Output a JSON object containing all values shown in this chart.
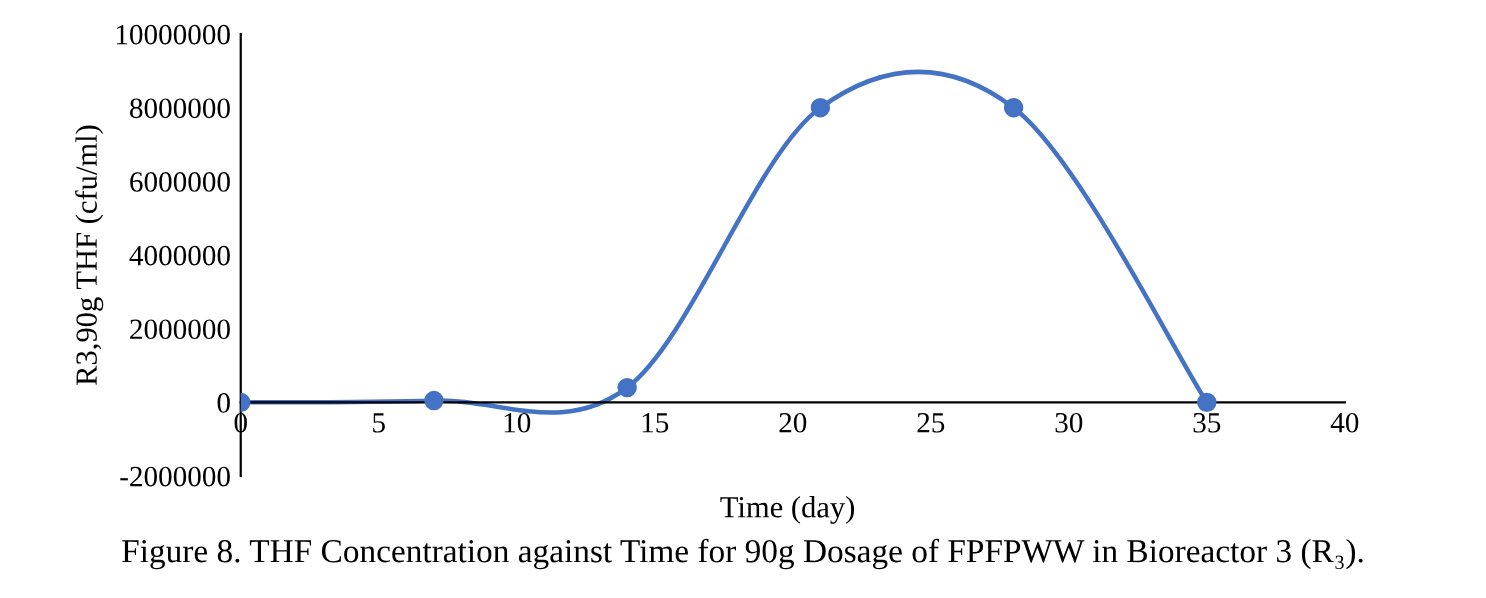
{
  "chart_data": {
    "type": "line",
    "xlabel": "Time (day)",
    "ylabel": "R3,90g THF (cfu/ml)",
    "annotations": [
      "Figure 8. THF Concentration against Time for 90g Dosage of FPFPWW in Bioreactor 3 (R₃)."
    ],
    "x": [
      0,
      7,
      14,
      21,
      28,
      35
    ],
    "series": [
      {
        "color": "#4472c4",
        "values": [
          0,
          50000,
          400000,
          8000000,
          8000000,
          0
        ]
      }
    ],
    "xlim": [
      0,
      40
    ],
    "xticks": [
      0,
      5,
      10,
      15,
      20,
      25,
      30,
      35,
      40
    ],
    "ylim": [
      -2000000,
      10000000
    ],
    "yticks": [
      -2000000,
      0,
      2000000,
      4000000,
      6000000,
      8000000,
      10000000
    ],
    "marker": "circle",
    "line_style": "solid",
    "grid": false,
    "legend": false
  }
}
